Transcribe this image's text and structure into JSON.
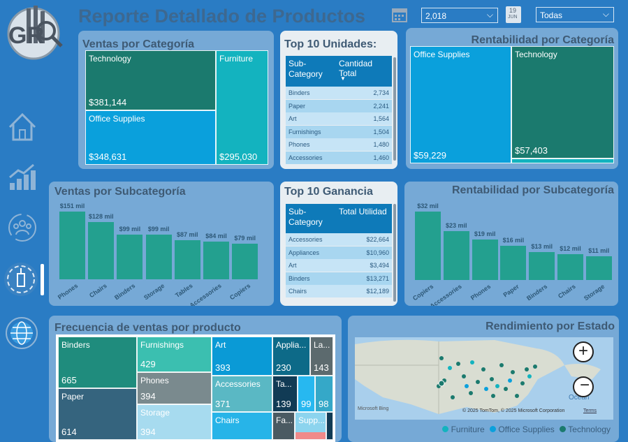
{
  "header": {
    "title": "Reporte Detallado de Productos",
    "year_value": "2,018",
    "calendar_day": "19",
    "calendar_month": "JUN",
    "filter_value": "Todas"
  },
  "logo": {
    "text": "GR"
  },
  "nav": [
    "home-icon",
    "bar-chart-icon",
    "users-refresh-icon",
    "tower-icon",
    "globe-icon"
  ],
  "ventas_categoria": {
    "title": "Ventas por Categoría",
    "tiles": [
      {
        "label": "Technology",
        "value": "$381,144",
        "color": "#1b7a6e"
      },
      {
        "label": "Office Supplies",
        "value": "$348,631",
        "color": "#0aa0dc"
      },
      {
        "label": "Furniture",
        "value": "$295,030",
        "color": "#13b3bf"
      }
    ]
  },
  "top10_unidades": {
    "title": "Top 10 Unidades:",
    "col1": "Sub-Category",
    "col2": "Cantidad Total",
    "rows": [
      {
        "name": "Binders",
        "value": "2,734"
      },
      {
        "name": "Paper",
        "value": "2,241"
      },
      {
        "name": "Art",
        "value": "1,564"
      },
      {
        "name": "Furnishings",
        "value": "1,504"
      },
      {
        "name": "Phones",
        "value": "1,480"
      },
      {
        "name": "Accessories",
        "value": "1,460"
      }
    ]
  },
  "rentabilidad_categoria": {
    "title": "Rentabilidad por Categoría",
    "tiles": [
      {
        "label": "Office Supplies",
        "value": "$59,229",
        "color": "#0aa0dc"
      },
      {
        "label": "Technology",
        "value": "$57,403",
        "color": "#1b7a6e"
      }
    ]
  },
  "ventas_subcategoria": {
    "title": "Ventas por Subcategoría",
    "chart_data": {
      "type": "bar",
      "categories": [
        "Phones",
        "Chairs",
        "Binders",
        "Storage",
        "Tables",
        "Accessories",
        "Copiers"
      ],
      "values": [
        151,
        128,
        99,
        99,
        87,
        84,
        79
      ],
      "labels": [
        "$151 mil",
        "$128 mil",
        "$99 mil",
        "$99 mil",
        "$87 mil",
        "$84 mil",
        "$79 mil"
      ],
      "ylim": [
        0,
        151
      ]
    }
  },
  "top10_ganancia": {
    "title": "Top 10 Ganancia",
    "col1": "Sub-Category",
    "col2": "Total Utilidad",
    "rows": [
      {
        "name": "Accessories",
        "value": "$22,664"
      },
      {
        "name": "Appliances",
        "value": "$10,960"
      },
      {
        "name": "Art",
        "value": "$3,494"
      },
      {
        "name": "Binders",
        "value": "$13,271"
      },
      {
        "name": "Chairs",
        "value": "$12,189"
      }
    ]
  },
  "rentabilidad_subcategoria": {
    "title": "Rentabilidad por Subcategoría",
    "chart_data": {
      "type": "bar",
      "categories": [
        "Copiers",
        "Accessories",
        "Phones",
        "Paper",
        "Binders",
        "Chairs",
        "Storage"
      ],
      "values": [
        32,
        23,
        19,
        16,
        13,
        12,
        11
      ],
      "labels": [
        "$32 mil",
        "$23 mil",
        "$19 mil",
        "$16 mil",
        "$13 mil",
        "$12 mil",
        "$11 mil"
      ],
      "ylim": [
        0,
        32
      ]
    }
  },
  "frecuencia": {
    "title": "Frecuencia de ventas por producto",
    "tiles": [
      {
        "label": "Binders",
        "value": "665",
        "color": "#1f8c7d"
      },
      {
        "label": "Paper",
        "value": "614",
        "color": "#35647e"
      },
      {
        "label": "Furnishings",
        "value": "429",
        "color": "#3bbfb0"
      },
      {
        "label": "Phones",
        "value": "394",
        "color": "#7a8a8e"
      },
      {
        "label": "Storage",
        "value": "394",
        "color": "#a7dbef"
      },
      {
        "label": "Art",
        "value": "393",
        "color": "#0a9ad6"
      },
      {
        "label": "Accessories",
        "value": "371",
        "color": "#5ab8c4"
      },
      {
        "label": "Chairs",
        "value": "",
        "color": "#27b4e8"
      },
      {
        "label": "Applia...",
        "value": "230",
        "color": "#0d6a88"
      },
      {
        "label": "La...",
        "value": "143",
        "color": "#5c6a6e"
      },
      {
        "label": "Ta...",
        "value": "139",
        "color": "#113b55"
      },
      {
        "label": "",
        "value": "99",
        "color": "#27b8f0"
      },
      {
        "label": "",
        "value": "98",
        "color": "#35a8c8"
      },
      {
        "label": "Fa...",
        "value": "",
        "color": "#4a5a62"
      },
      {
        "label": "Supp...",
        "value": "",
        "color": "#8cd4ee"
      }
    ]
  },
  "rendimiento": {
    "title": "Rendimiento por Estado",
    "attribution": "© 2025 TomTom, © 2025 Microsoft Corporation",
    "terms": "Terms",
    "bing": "Microsoft Bing",
    "ocean": "Ocean",
    "legend": [
      {
        "label": "Furniture",
        "color": "#13b3bf"
      },
      {
        "label": "Office Supplies",
        "color": "#0aa0dc"
      },
      {
        "label": "Technology",
        "color": "#1b7a6e"
      }
    ]
  }
}
